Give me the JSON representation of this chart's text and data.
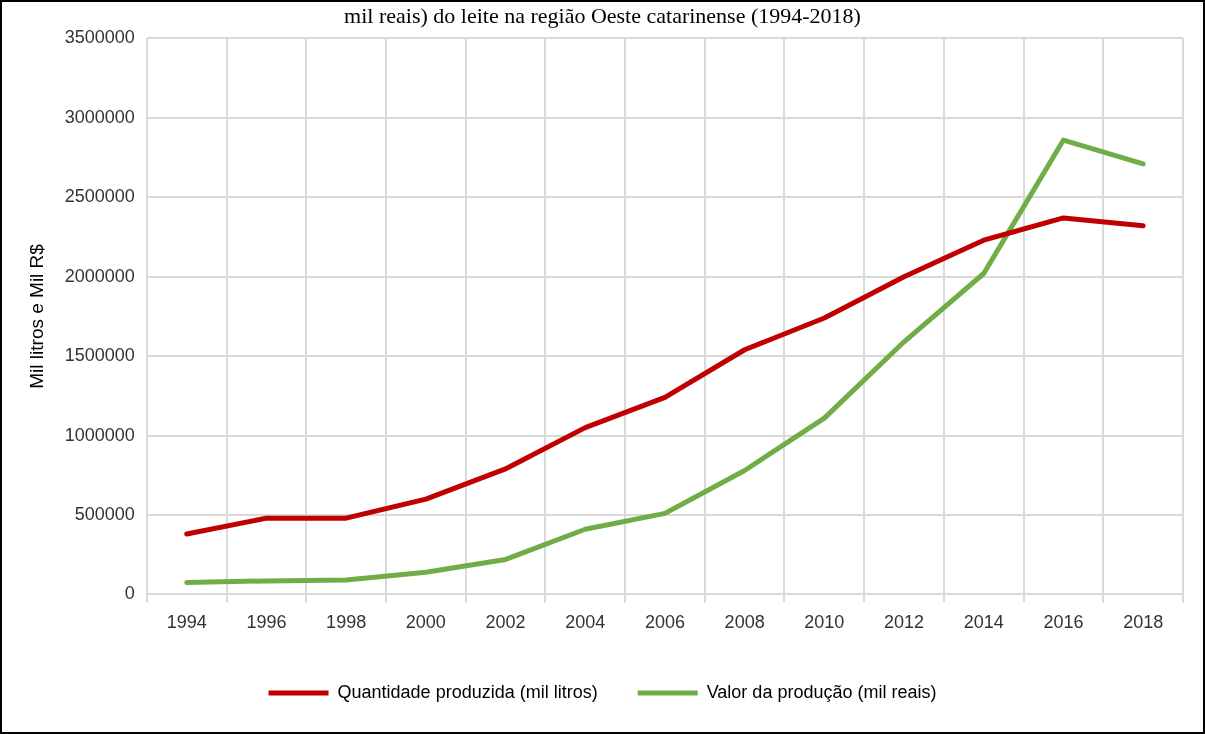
{
  "chart_data": {
    "type": "line",
    "title": "mil reais) do leite na região Oeste catarinense (1994-2018)",
    "ylabel": "Mil litros e Mil R$",
    "categories": [
      "1994",
      "1996",
      "1998",
      "2000",
      "2002",
      "2004",
      "2006",
      "2008",
      "2010",
      "2012",
      "2014",
      "2016",
      "2018"
    ],
    "series": [
      {
        "name": "Quantidade produzida (mil litros)",
        "color": "#c00000",
        "values": [
          380000,
          480000,
          480000,
          600000,
          790000,
          1050000,
          1240000,
          1540000,
          1740000,
          2000000,
          2230000,
          2370000,
          2320000
        ]
      },
      {
        "name": "Valor da produção (mil reais)",
        "color": "#70ad47",
        "values": [
          75000,
          85000,
          90000,
          140000,
          220000,
          410000,
          510000,
          780000,
          1110000,
          1590000,
          2020000,
          2860000,
          2710000
        ]
      }
    ],
    "ylim": [
      0,
      3500000
    ],
    "yticks": [
      0,
      500000,
      1000000,
      1500000,
      2000000,
      2500000,
      3000000,
      3500000
    ],
    "grid": true,
    "legend": "bottom",
    "marker": "none",
    "line_style": "solid"
  }
}
